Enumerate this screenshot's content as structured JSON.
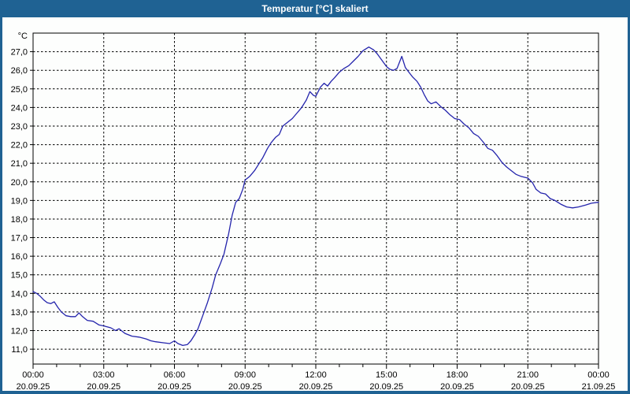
{
  "window": {
    "title": "Temperatur [°C] skaliert",
    "colors": {
      "titlebar": "#1f6293",
      "border": "#1f6293",
      "content_bg": "#fdfefd",
      "frame": "#000000",
      "grid": "#000000",
      "text": "#000000",
      "line": "#2424ac"
    }
  },
  "chart_data": {
    "type": "line",
    "title": "Temperatur [°C] skaliert",
    "ylabel": "°C",
    "xlabel": "",
    "grid": "dashed",
    "legend": "none",
    "ylim": [
      10.2,
      28.0
    ],
    "xlim_hours": [
      0,
      24
    ],
    "y_ticks": [
      27,
      26,
      25,
      24,
      23,
      22,
      21,
      20,
      19,
      18,
      17,
      16,
      15,
      14,
      13,
      12,
      11
    ],
    "y_tick_labels": [
      "27,0",
      "26,0",
      "25,0",
      "24,0",
      "23,0",
      "22,0",
      "21,0",
      "20,0",
      "19,0",
      "18,0",
      "17,0",
      "16,0",
      "15,0",
      "14,0",
      "13,0",
      "12,0",
      "11,0"
    ],
    "x_major_ticks": [
      {
        "hour": 0,
        "time": "00:00",
        "date": "20.09.25"
      },
      {
        "hour": 3,
        "time": "03:00",
        "date": "20.09.25"
      },
      {
        "hour": 6,
        "time": "06:00",
        "date": "20.09.25"
      },
      {
        "hour": 9,
        "time": "09:00",
        "date": "20.09.25"
      },
      {
        "hour": 12,
        "time": "12:00",
        "date": "20.09.25"
      },
      {
        "hour": 15,
        "time": "15:00",
        "date": "20.09.25"
      },
      {
        "hour": 18,
        "time": "18:00",
        "date": "20.09.25"
      },
      {
        "hour": 21,
        "time": "21:00",
        "date": "20.09.25"
      },
      {
        "hour": 24,
        "time": "00:00",
        "date": "21.09.25"
      }
    ],
    "x_minor_tick_interval_hours": 1,
    "series": [
      {
        "name": "Temperatur",
        "unit": "°C",
        "color": "#2424ac",
        "points": [
          [
            0,
            14.1
          ],
          [
            0.15,
            14.0
          ],
          [
            0.3,
            13.85
          ],
          [
            0.45,
            13.65
          ],
          [
            0.6,
            13.5
          ],
          [
            0.75,
            13.45
          ],
          [
            0.9,
            13.55
          ],
          [
            1.05,
            13.25
          ],
          [
            1.2,
            13.0
          ],
          [
            1.4,
            12.8
          ],
          [
            1.6,
            12.75
          ],
          [
            1.8,
            12.75
          ],
          [
            1.95,
            12.95
          ],
          [
            2.1,
            12.75
          ],
          [
            2.3,
            12.55
          ],
          [
            2.55,
            12.5
          ],
          [
            2.8,
            12.3
          ],
          [
            3.0,
            12.25
          ],
          [
            3.3,
            12.15
          ],
          [
            3.5,
            12.0
          ],
          [
            3.65,
            12.1
          ],
          [
            3.9,
            11.85
          ],
          [
            4.2,
            11.7
          ],
          [
            4.5,
            11.65
          ],
          [
            4.8,
            11.55
          ],
          [
            5.0,
            11.45
          ],
          [
            5.2,
            11.4
          ],
          [
            5.5,
            11.35
          ],
          [
            5.8,
            11.3
          ],
          [
            6.0,
            11.45
          ],
          [
            6.15,
            11.3
          ],
          [
            6.35,
            11.2
          ],
          [
            6.55,
            11.25
          ],
          [
            6.7,
            11.45
          ],
          [
            6.85,
            11.75
          ],
          [
            7.0,
            12.1
          ],
          [
            7.2,
            12.8
          ],
          [
            7.4,
            13.5
          ],
          [
            7.6,
            14.3
          ],
          [
            7.75,
            15.0
          ],
          [
            7.95,
            15.6
          ],
          [
            8.1,
            16.1
          ],
          [
            8.3,
            17.2
          ],
          [
            8.45,
            18.2
          ],
          [
            8.6,
            18.9
          ],
          [
            8.75,
            19.1
          ],
          [
            8.9,
            19.6
          ],
          [
            9.0,
            20.1
          ],
          [
            9.2,
            20.3
          ],
          [
            9.4,
            20.6
          ],
          [
            9.6,
            21.0
          ],
          [
            9.75,
            21.3
          ],
          [
            9.95,
            21.8
          ],
          [
            10.1,
            22.1
          ],
          [
            10.3,
            22.4
          ],
          [
            10.45,
            22.55
          ],
          [
            10.6,
            23.0
          ],
          [
            10.8,
            23.2
          ],
          [
            11.0,
            23.4
          ],
          [
            11.2,
            23.7
          ],
          [
            11.4,
            24.0
          ],
          [
            11.6,
            24.4
          ],
          [
            11.75,
            24.85
          ],
          [
            11.9,
            24.65
          ],
          [
            12.0,
            24.6
          ],
          [
            12.2,
            25.1
          ],
          [
            12.35,
            25.3
          ],
          [
            12.5,
            25.15
          ],
          [
            12.65,
            25.4
          ],
          [
            12.8,
            25.6
          ],
          [
            13.0,
            25.9
          ],
          [
            13.2,
            26.1
          ],
          [
            13.4,
            26.25
          ],
          [
            13.6,
            26.5
          ],
          [
            13.8,
            26.75
          ],
          [
            14.0,
            27.05
          ],
          [
            14.25,
            27.25
          ],
          [
            14.45,
            27.1
          ],
          [
            14.6,
            26.9
          ],
          [
            14.8,
            26.55
          ],
          [
            15.0,
            26.2
          ],
          [
            15.15,
            26.05
          ],
          [
            15.3,
            26.0
          ],
          [
            15.45,
            26.1
          ],
          [
            15.65,
            26.75
          ],
          [
            15.8,
            26.15
          ],
          [
            15.95,
            25.9
          ],
          [
            16.1,
            25.65
          ],
          [
            16.3,
            25.4
          ],
          [
            16.45,
            25.1
          ],
          [
            16.6,
            24.7
          ],
          [
            16.75,
            24.35
          ],
          [
            16.9,
            24.2
          ],
          [
            17.1,
            24.3
          ],
          [
            17.3,
            24.05
          ],
          [
            17.5,
            23.85
          ],
          [
            17.7,
            23.6
          ],
          [
            17.9,
            23.4
          ],
          [
            18.1,
            23.35
          ],
          [
            18.3,
            23.1
          ],
          [
            18.5,
            22.9
          ],
          [
            18.7,
            22.6
          ],
          [
            18.9,
            22.45
          ],
          [
            19.1,
            22.15
          ],
          [
            19.3,
            21.8
          ],
          [
            19.5,
            21.7
          ],
          [
            19.7,
            21.4
          ],
          [
            19.9,
            21.05
          ],
          [
            20.1,
            20.8
          ],
          [
            20.3,
            20.6
          ],
          [
            20.5,
            20.4
          ],
          [
            20.7,
            20.3
          ],
          [
            21.0,
            20.2
          ],
          [
            21.2,
            19.95
          ],
          [
            21.35,
            19.6
          ],
          [
            21.55,
            19.4
          ],
          [
            21.75,
            19.35
          ],
          [
            21.95,
            19.1
          ],
          [
            22.15,
            19.0
          ],
          [
            22.4,
            18.8
          ],
          [
            22.65,
            18.65
          ],
          [
            22.9,
            18.6
          ],
          [
            23.15,
            18.65
          ],
          [
            23.45,
            18.75
          ],
          [
            23.7,
            18.85
          ],
          [
            24.0,
            18.9
          ]
        ]
      }
    ]
  }
}
